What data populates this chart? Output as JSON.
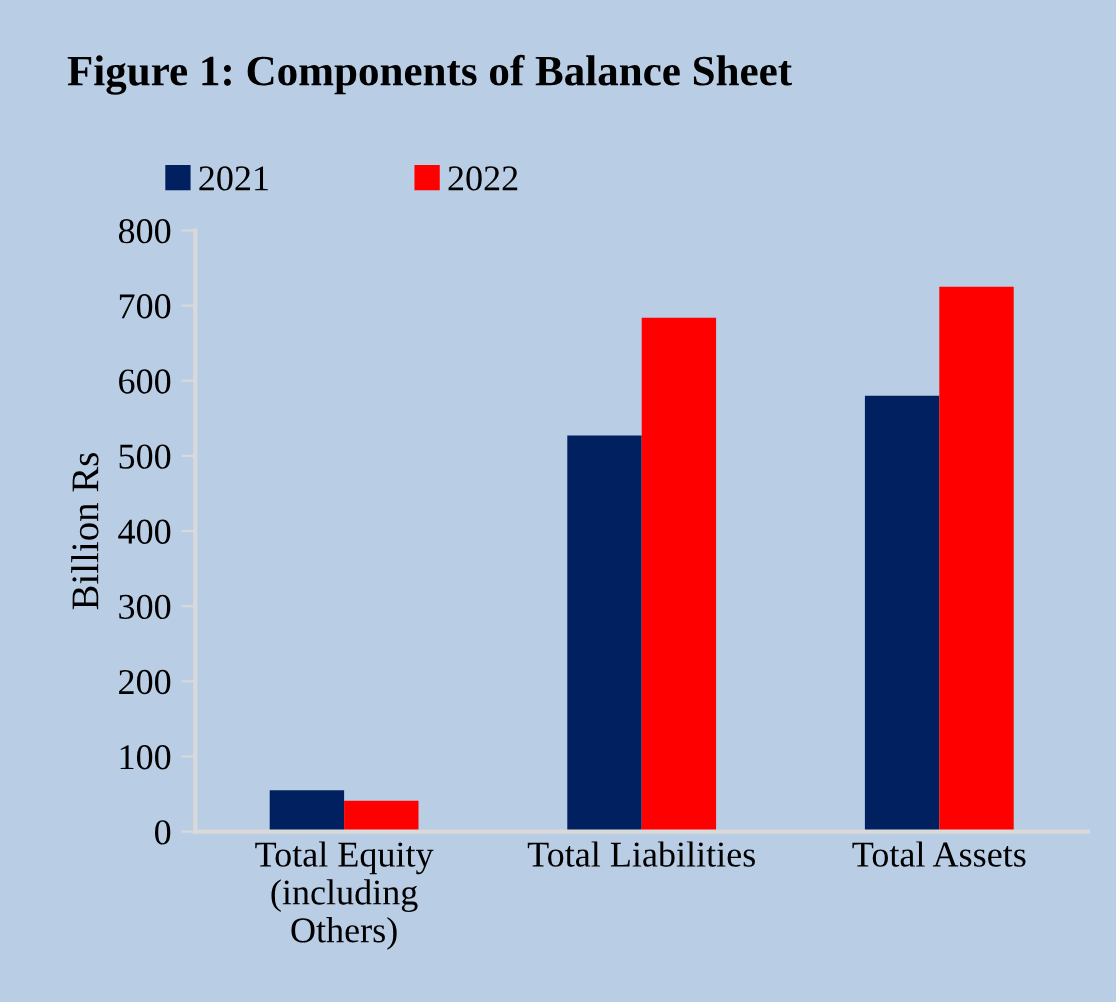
{
  "chart_data": {
    "type": "bar",
    "title": "Figure 1: Components of Balance Sheet",
    "ylabel": "Billion Rs",
    "categories": [
      "Total Equity\n(including\nOthers)",
      "Total Liabilities",
      "Total Assets"
    ],
    "series": [
      {
        "name": "2021",
        "color": "#002060",
        "values": [
          55,
          527,
          580
        ]
      },
      {
        "name": "2022",
        "color": "#ff0000",
        "values": [
          41,
          684,
          725
        ]
      }
    ],
    "ylim": [
      0,
      800
    ],
    "yticks": [
      0,
      100,
      200,
      300,
      400,
      500,
      600,
      700,
      800
    ],
    "grid": false,
    "legend": "top left"
  }
}
